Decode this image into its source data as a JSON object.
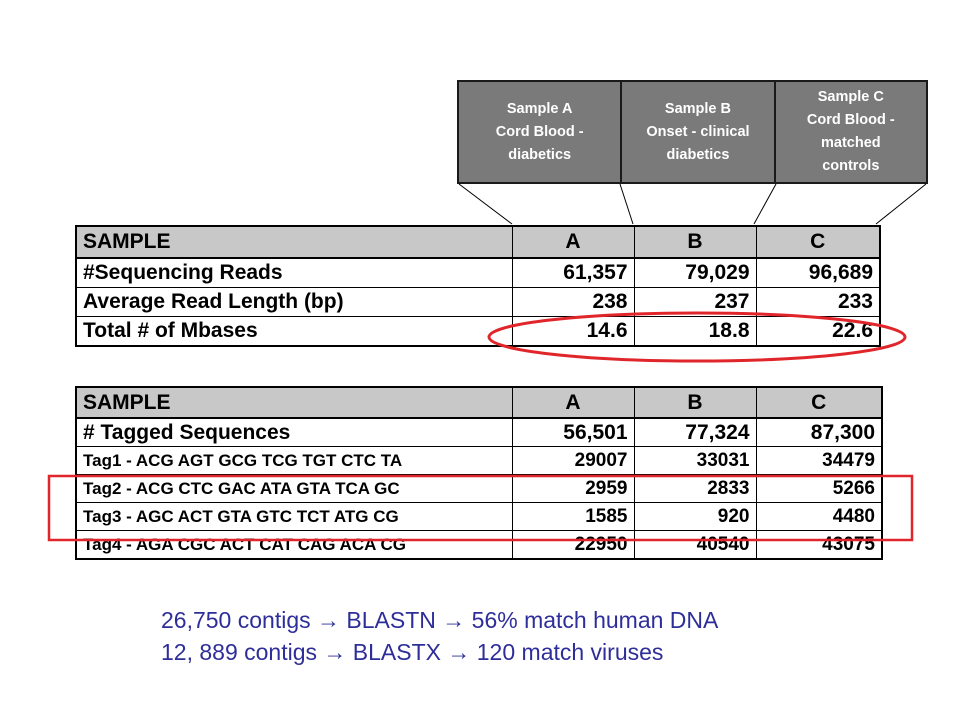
{
  "callouts": [
    {
      "text": "Sample A\nCord Blood -\ndiabetics"
    },
    {
      "text": "Sample B\nOnset - clinical\ndiabetics"
    },
    {
      "text": "Sample C\nCord Blood -\nmatched\ncontrols"
    }
  ],
  "table1": {
    "header": [
      "SAMPLE",
      "A",
      "B",
      "C"
    ],
    "rows": [
      {
        "label": "#Sequencing Reads",
        "values": [
          "61,357",
          "79,029",
          "96,689"
        ]
      },
      {
        "label": "Average Read Length (bp)",
        "values": [
          "238",
          "237",
          "233"
        ]
      },
      {
        "label": "Total # of Mbases",
        "values": [
          "14.6",
          "18.8",
          "22.6"
        ]
      }
    ]
  },
  "table2": {
    "header": [
      "SAMPLE",
      "A",
      "B",
      "C"
    ],
    "rows": [
      {
        "label": "# Tagged Sequences",
        "values": [
          "56,501",
          "77,324",
          "87,300"
        ]
      },
      {
        "label": "Tag1 - ACG AGT GCG TCG TGT CTC TA",
        "values": [
          "29007",
          "33031",
          "34479"
        ]
      },
      {
        "label": "Tag2 - ACG CTC GAC ATA GTA TCA GC",
        "values": [
          "2959",
          "2833",
          "5266"
        ]
      },
      {
        "label": "Tag3 - AGC ACT GTA GTC TCT ATG CG",
        "values": [
          "1585",
          "920",
          "4480"
        ]
      },
      {
        "label": "Tag4 - AGA CGC ACT CAT CAG ACA CG",
        "values": [
          "22950",
          "40540",
          "43075"
        ]
      }
    ]
  },
  "notes": [
    "26,750 contigs → BLASTN → 56% match human DNA",
    "12, 889 contigs → BLASTX → 120 match viruses"
  ],
  "colors": {
    "highlight": "#e0262a",
    "note_text": "#2e2e9a",
    "callout_bg": "#7a7a7a",
    "header_bg": "#c8c8c8"
  }
}
